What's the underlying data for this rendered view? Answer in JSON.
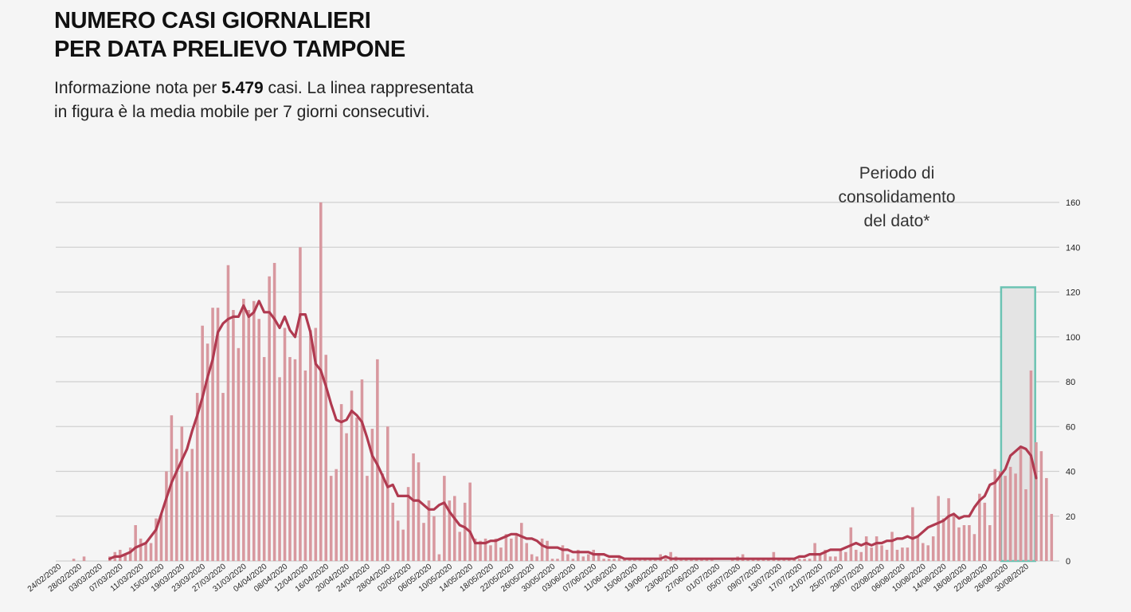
{
  "header": {
    "title_line1": "NUMERO CASI GIORNALIERI",
    "title_line2": "PER DATA PRELIEVO TAMPONE",
    "subtitle_pre": "Informazione nota per ",
    "subtitle_bold": "5.479",
    "subtitle_post": "  casi. La linea rappresentata in figura è la media mobile per 7 giorni consecutivi."
  },
  "annotation": {
    "lines": [
      "Periodo di",
      "consolidamento",
      "del dato*"
    ]
  },
  "colors": {
    "bar": "#d8989f",
    "line": "#b03a50",
    "grid": "#d0d0d0",
    "highlight_border": "#6cc3b3",
    "highlight_fill": "#e4e4e4",
    "background": "#f5f5f5"
  },
  "chart_data": {
    "type": "bar",
    "x_start": "2020-02-24",
    "x_end": "2020-08-31",
    "x_tick_labels": [
      "24/02/2020",
      "28/02/2020",
      "03/03/2020",
      "07/03/2020",
      "11/03/2020",
      "15/03/2020",
      "19/03/2020",
      "23/03/2020",
      "27/03/2020",
      "31/03/2020",
      "04/04/2020",
      "08/04/2020",
      "12/04/2020",
      "16/04/2020",
      "20/04/2020",
      "24/04/2020",
      "28/04/2020",
      "02/05/2020",
      "06/05/2020",
      "10/05/2020",
      "14/05/2020",
      "18/05/2020",
      "22/05/2020",
      "26/05/2020",
      "30/05/2020",
      "03/06/2020",
      "07/06/2020",
      "11/06/2020",
      "15/06/2020",
      "19/06/2020",
      "23/06/2020",
      "27/06/2020",
      "01/07/2020",
      "05/07/2020",
      "09/07/2020",
      "13/07/2020",
      "17/07/2020",
      "21/07/2020",
      "25/07/2020",
      "29/07/2020",
      "02/08/2020",
      "06/08/2020",
      "10/08/2020",
      "14/08/2020",
      "18/08/2020",
      "22/08/2020",
      "26/08/2020",
      "30/08/2020"
    ],
    "y_ticks": [
      0,
      20,
      40,
      60,
      80,
      100,
      120,
      140,
      160
    ],
    "ylim": [
      0,
      160
    ],
    "grid": true,
    "highlight_range": [
      "2020-08-26",
      "2020-08-31"
    ],
    "highlight_label": "Periodo di consolidamento del dato*",
    "series": [
      {
        "kind": "bar",
        "values": [
          0,
          0,
          0,
          1,
          0,
          2,
          0,
          0,
          0,
          0,
          2,
          4,
          5,
          3,
          6,
          16,
          10,
          8,
          8,
          19,
          21,
          40,
          65,
          50,
          60,
          40,
          50,
          75,
          105,
          97,
          113,
          113,
          75,
          132,
          112,
          95,
          117,
          112,
          116,
          108,
          91,
          127,
          133,
          82,
          104,
          91,
          90,
          140,
          85,
          103,
          104,
          160,
          92,
          38,
          41,
          70,
          57,
          76,
          64,
          81,
          38,
          59,
          90,
          39,
          60,
          26,
          18,
          14,
          33,
          48,
          44,
          17,
          27,
          20,
          3,
          38,
          27,
          29,
          13,
          26,
          35,
          10,
          9,
          10,
          7,
          10,
          6,
          12,
          10,
          12,
          17,
          8,
          3,
          2,
          10,
          9,
          1,
          1,
          7,
          3,
          1,
          5,
          2,
          3,
          5,
          3,
          1,
          1,
          1,
          2,
          1,
          1,
          1,
          1,
          1,
          1,
          1,
          3,
          1,
          4,
          2,
          1,
          1,
          1,
          1,
          1,
          1,
          1,
          0,
          0,
          0,
          1,
          2,
          3,
          1,
          1,
          1,
          1,
          1,
          4,
          1,
          1,
          1,
          1,
          1,
          1,
          1,
          8,
          3,
          5,
          2,
          2,
          5,
          4,
          15,
          5,
          4,
          11,
          6,
          11,
          7,
          5,
          13,
          5,
          6,
          6,
          24,
          11,
          8,
          7,
          11,
          29,
          19,
          28,
          21,
          15,
          16,
          16,
          12,
          30,
          26,
          16,
          41,
          40,
          38,
          42,
          39,
          51,
          32,
          85,
          53,
          49,
          37,
          21,
          0
        ],
        "note": "Daily cases (approximate, read from chart)"
      },
      {
        "kind": "line",
        "values": [
          null,
          null,
          null,
          null,
          null,
          null,
          null,
          null,
          null,
          null,
          1,
          2,
          2,
          3,
          4,
          6,
          7,
          8,
          11,
          14,
          21,
          28,
          35,
          40,
          45,
          50,
          58,
          65,
          73,
          82,
          90,
          102,
          106,
          108,
          109,
          109,
          114,
          109,
          111,
          116,
          111,
          111,
          108,
          104,
          109,
          103,
          100,
          110,
          110,
          102,
          88,
          85,
          78,
          70,
          63,
          62,
          63,
          67,
          65,
          62,
          55,
          47,
          43,
          38,
          33,
          34,
          29,
          29,
          29,
          27,
          27,
          25,
          23,
          23,
          25,
          26,
          22,
          19,
          16,
          15,
          13,
          8,
          8,
          8,
          9,
          9,
          10,
          11,
          12,
          12,
          11,
          10,
          10,
          9,
          7,
          6,
          6,
          6,
          5,
          5,
          4,
          4,
          4,
          4,
          3,
          3,
          3,
          2,
          2,
          2,
          1,
          1,
          1,
          1,
          1,
          1,
          1,
          1,
          2,
          1,
          1,
          1,
          1,
          1,
          1,
          1,
          1,
          1,
          1,
          1,
          1,
          1,
          1,
          1,
          1,
          1,
          1,
          1,
          1,
          1,
          1,
          1,
          1,
          1,
          2,
          2,
          3,
          3,
          3,
          4,
          5,
          5,
          5,
          6,
          7,
          8,
          7,
          8,
          7,
          8,
          8,
          9,
          9,
          10,
          10,
          11,
          10,
          11,
          13,
          15,
          16,
          17,
          18,
          20,
          21,
          19,
          20,
          20,
          24,
          27,
          29,
          34,
          35,
          38,
          41,
          47,
          49,
          51,
          50,
          47,
          37
        ],
        "note": "7-day moving average"
      }
    ]
  }
}
